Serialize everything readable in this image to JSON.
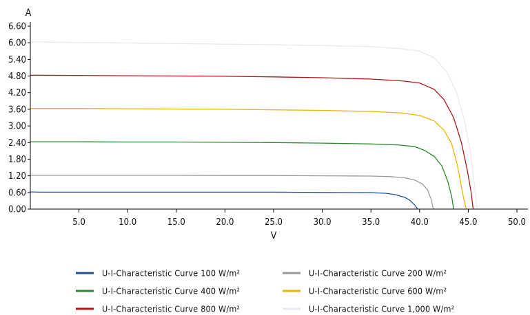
{
  "chart_data": {
    "type": "line",
    "title": "",
    "xlabel": "V",
    "ylabel": "A",
    "xlim": [
      0,
      50
    ],
    "ylim": [
      0,
      6.6
    ],
    "x_ticks": [
      "5.0",
      "10.0",
      "15.0",
      "20.0",
      "25.0",
      "30.0",
      "35.0",
      "40.0",
      "45.0",
      "50.0"
    ],
    "y_ticks": [
      "0.00",
      "0.60",
      "1.20",
      "1.80",
      "2.40",
      "3.00",
      "3.60",
      "4.20",
      "4.80",
      "5.40",
      "6.00",
      "6.60"
    ],
    "grid": false,
    "legend_position": "bottom",
    "series": [
      {
        "name": "U-I-Characteristic Curve 100 W/m²",
        "color": "#1f4e9c",
        "points": [
          [
            0,
            0.62
          ],
          [
            1,
            0.61
          ],
          [
            5,
            0.61
          ],
          [
            10,
            0.61
          ],
          [
            15,
            0.61
          ],
          [
            20,
            0.61
          ],
          [
            25,
            0.61
          ],
          [
            30,
            0.6
          ],
          [
            35,
            0.59
          ],
          [
            36.5,
            0.57
          ],
          [
            37.5,
            0.52
          ],
          [
            38.5,
            0.42
          ],
          [
            39,
            0.32
          ],
          [
            39.5,
            0.15
          ],
          [
            39.8,
            0
          ]
        ]
      },
      {
        "name": "U-I-Characteristic Curve 200 W/m²",
        "color": "#9a9a9a",
        "points": [
          [
            0,
            1.22
          ],
          [
            5,
            1.22
          ],
          [
            10,
            1.22
          ],
          [
            15,
            1.22
          ],
          [
            20,
            1.21
          ],
          [
            25,
            1.21
          ],
          [
            30,
            1.2
          ],
          [
            35,
            1.19
          ],
          [
            37,
            1.17
          ],
          [
            38.5,
            1.13
          ],
          [
            39.5,
            1.05
          ],
          [
            40.3,
            0.9
          ],
          [
            40.8,
            0.7
          ],
          [
            41.2,
            0.35
          ],
          [
            41.4,
            0
          ]
        ]
      },
      {
        "name": "U-I-Characteristic Curve 400 W/m²",
        "color": "#2a8a2a",
        "points": [
          [
            0,
            2.43
          ],
          [
            5,
            2.43
          ],
          [
            10,
            2.42
          ],
          [
            15,
            2.42
          ],
          [
            20,
            2.41
          ],
          [
            25,
            2.4
          ],
          [
            30,
            2.38
          ],
          [
            35,
            2.35
          ],
          [
            38,
            2.31
          ],
          [
            39.5,
            2.25
          ],
          [
            40.5,
            2.12
          ],
          [
            41.5,
            1.9
          ],
          [
            42.3,
            1.55
          ],
          [
            42.9,
            1.0
          ],
          [
            43.3,
            0.45
          ],
          [
            43.5,
            0
          ]
        ]
      },
      {
        "name": "U-I-Characteristic Curve 600 W/m²",
        "color": "#f0b400",
        "points": [
          [
            0,
            3.63
          ],
          [
            5,
            3.63
          ],
          [
            10,
            3.62
          ],
          [
            15,
            3.61
          ],
          [
            20,
            3.6
          ],
          [
            25,
            3.58
          ],
          [
            30,
            3.56
          ],
          [
            35,
            3.52
          ],
          [
            38,
            3.47
          ],
          [
            40,
            3.38
          ],
          [
            41.5,
            3.18
          ],
          [
            42.5,
            2.85
          ],
          [
            43.3,
            2.35
          ],
          [
            43.9,
            1.55
          ],
          [
            44.3,
            0.8
          ],
          [
            44.6,
            0.25
          ],
          [
            44.8,
            0
          ]
        ]
      },
      {
        "name": "U-I-Characteristic Curve 800 W/m²",
        "color": "#b01818",
        "points": [
          [
            0,
            4.83
          ],
          [
            5,
            4.82
          ],
          [
            10,
            4.81
          ],
          [
            15,
            4.8
          ],
          [
            20,
            4.79
          ],
          [
            25,
            4.77
          ],
          [
            30,
            4.74
          ],
          [
            35,
            4.69
          ],
          [
            38,
            4.63
          ],
          [
            40,
            4.55
          ],
          [
            41.5,
            4.32
          ],
          [
            42.5,
            3.95
          ],
          [
            43.5,
            3.3
          ],
          [
            44.3,
            2.4
          ],
          [
            44.9,
            1.4
          ],
          [
            45.3,
            0.6
          ],
          [
            45.5,
            0
          ]
        ]
      },
      {
        "name": "U-I-Characteristic Curve 1,000 W/m²",
        "color": "#e6e9f0",
        "points": [
          [
            0,
            6.03
          ],
          [
            5,
            6.01
          ],
          [
            10,
            5.99
          ],
          [
            15,
            5.97
          ],
          [
            20,
            5.95
          ],
          [
            25,
            5.93
          ],
          [
            30,
            5.9
          ],
          [
            35,
            5.86
          ],
          [
            38,
            5.79
          ],
          [
            40,
            5.7
          ],
          [
            41.5,
            5.45
          ],
          [
            42.8,
            4.95
          ],
          [
            43.8,
            4.2
          ],
          [
            44.6,
            3.2
          ],
          [
            45.2,
            2.1
          ],
          [
            45.6,
            1.0
          ],
          [
            45.9,
            0
          ]
        ]
      }
    ]
  }
}
